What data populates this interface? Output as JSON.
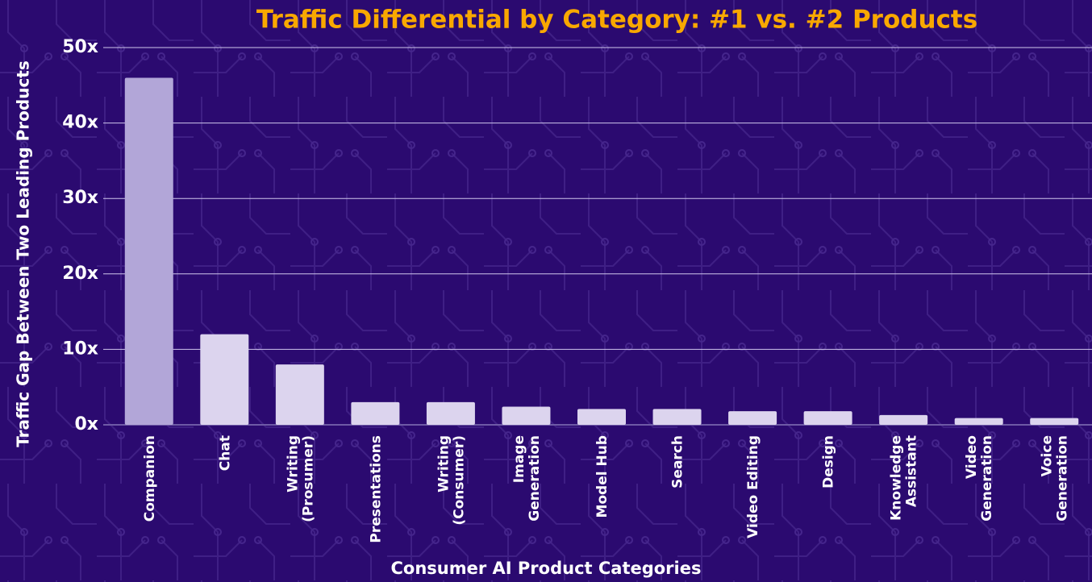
{
  "chart_data": {
    "type": "bar",
    "title": "Traffic Differential by Category: #1 vs. #2 Products",
    "x_label": "Consumer AI Product Categories",
    "y_label": "Traffic Gap Between Two Leading Products",
    "categories": [
      "Companion",
      "Chat",
      "Writing\n(Prosumer)",
      "Presentations",
      "Writing\n(Consumer)",
      "Image\nGeneration",
      "Model Hub",
      "Search",
      "Video Editing",
      "Design",
      "Knowledge\nAssistant",
      "Video\nGeneration",
      "Voice\nGeneration"
    ],
    "values": [
      46,
      12,
      8,
      3,
      3,
      2.4,
      2.1,
      2.1,
      1.8,
      1.8,
      1.3,
      0.9,
      0.9
    ],
    "colors": [
      "#b2a6d8",
      "#dcd4ee",
      "#dcd4ee",
      "#dcd4ee",
      "#dcd4ee",
      "#dcd4ee",
      "#dcd4ee",
      "#dcd4ee",
      "#dcd4ee",
      "#dcd4ee",
      "#dcd4ee",
      "#dcd4ee",
      "#dcd4ee"
    ],
    "ylim": [
      0,
      50
    ],
    "yticks": [
      {
        "value": 0,
        "label": "0x"
      },
      {
        "value": 10,
        "label": "10x"
      },
      {
        "value": 20,
        "label": "20x"
      },
      {
        "value": 30,
        "label": "30x"
      },
      {
        "value": 40,
        "label": "40x"
      },
      {
        "value": 50,
        "label": "50x"
      }
    ],
    "grid": true
  }
}
